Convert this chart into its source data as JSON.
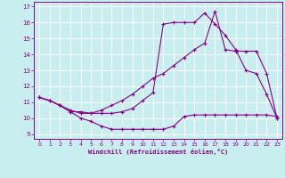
{
  "xlabel": "Windchill (Refroidissement éolien,°C)",
  "bg_color": "#c8eef0",
  "line_color": "#880088",
  "grid_color": "#ffffff",
  "xlim": [
    -0.5,
    23.5
  ],
  "ylim": [
    8.7,
    17.3
  ],
  "xticks": [
    0,
    1,
    2,
    3,
    4,
    5,
    6,
    7,
    8,
    9,
    10,
    11,
    12,
    13,
    14,
    15,
    16,
    17,
    18,
    19,
    20,
    21,
    22,
    23
  ],
  "yticks": [
    9,
    10,
    11,
    12,
    13,
    14,
    15,
    16,
    17
  ],
  "line1_x": [
    0,
    1,
    2,
    3,
    4,
    5,
    6,
    7,
    8,
    9,
    10,
    11,
    12,
    13,
    14,
    15,
    16,
    17,
    18,
    19,
    20,
    21,
    22,
    23
  ],
  "line1_y": [
    11.3,
    11.1,
    10.8,
    10.4,
    10.0,
    9.8,
    9.5,
    9.3,
    9.3,
    9.3,
    9.3,
    9.3,
    9.3,
    9.5,
    10.1,
    10.2,
    10.2,
    10.2,
    10.2,
    10.2,
    10.2,
    10.2,
    10.2,
    10.1
  ],
  "line2_x": [
    0,
    1,
    2,
    3,
    4,
    5,
    6,
    7,
    8,
    9,
    10,
    11,
    12,
    13,
    14,
    15,
    16,
    17,
    18,
    19,
    20,
    21,
    22,
    23
  ],
  "line2_y": [
    11.3,
    11.1,
    10.8,
    10.4,
    10.4,
    10.3,
    10.3,
    10.3,
    10.4,
    10.6,
    11.1,
    11.6,
    15.9,
    16.0,
    16.0,
    16.0,
    16.6,
    15.9,
    15.2,
    14.3,
    13.0,
    12.8,
    11.5,
    10.0
  ],
  "line3_x": [
    0,
    1,
    2,
    3,
    4,
    5,
    6,
    7,
    8,
    9,
    10,
    11,
    12,
    13,
    14,
    15,
    16,
    17,
    18,
    19,
    20,
    21,
    22,
    23
  ],
  "line3_y": [
    11.3,
    11.1,
    10.8,
    10.5,
    10.3,
    10.3,
    10.5,
    10.8,
    11.1,
    11.5,
    12.0,
    12.5,
    12.8,
    13.3,
    13.8,
    14.3,
    14.7,
    16.7,
    14.3,
    14.2,
    14.2,
    14.2,
    12.8,
    10.0
  ]
}
